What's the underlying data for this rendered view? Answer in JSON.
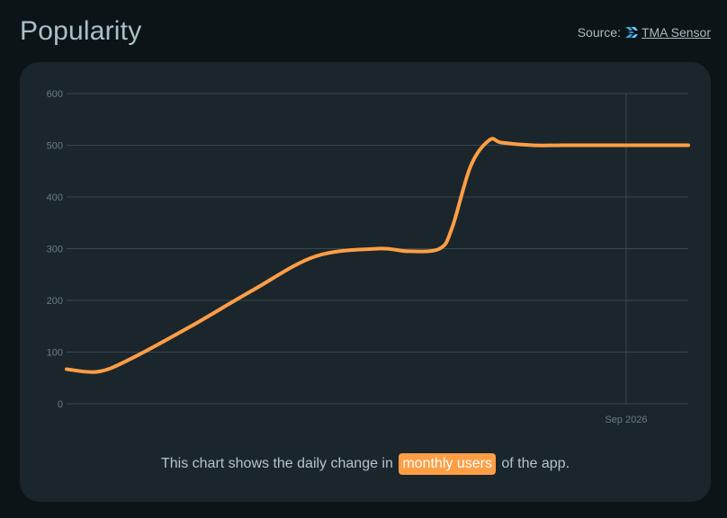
{
  "header": {
    "title": "Popularity",
    "source_prefix": "Source:",
    "source_name": "TMA Sensor",
    "source_logo_icon": "tma-sensor-logo-icon"
  },
  "caption": {
    "before": "This chart shows the daily change in",
    "highlight": "monthly users",
    "after": "of the app."
  },
  "colors": {
    "line": "#ff9e45",
    "grid": "#3a474d",
    "highlight": "#ff9e45"
  },
  "chart_data": {
    "type": "line",
    "title": "",
    "xlabel": "",
    "ylabel": "",
    "ylim": [
      0,
      600
    ],
    "y_ticks": [
      0,
      100,
      200,
      300,
      400,
      500,
      600
    ],
    "x_ticks": [
      {
        "label": "Sep 2026",
        "x": 0.9
      }
    ],
    "xlim": [
      0,
      1
    ],
    "grid": true,
    "legend": "none",
    "series": [
      {
        "x": [
          0.0,
          0.05,
          0.1,
          0.2,
          0.3,
          0.4,
          0.5,
          0.55,
          0.6,
          0.62,
          0.65,
          0.68,
          0.7,
          0.75,
          0.8,
          0.9,
          1.0
        ],
        "values": [
          67,
          62,
          85,
          150,
          220,
          285,
          300,
          295,
          300,
          340,
          460,
          510,
          505,
          500,
          500,
          500,
          500
        ]
      }
    ]
  }
}
